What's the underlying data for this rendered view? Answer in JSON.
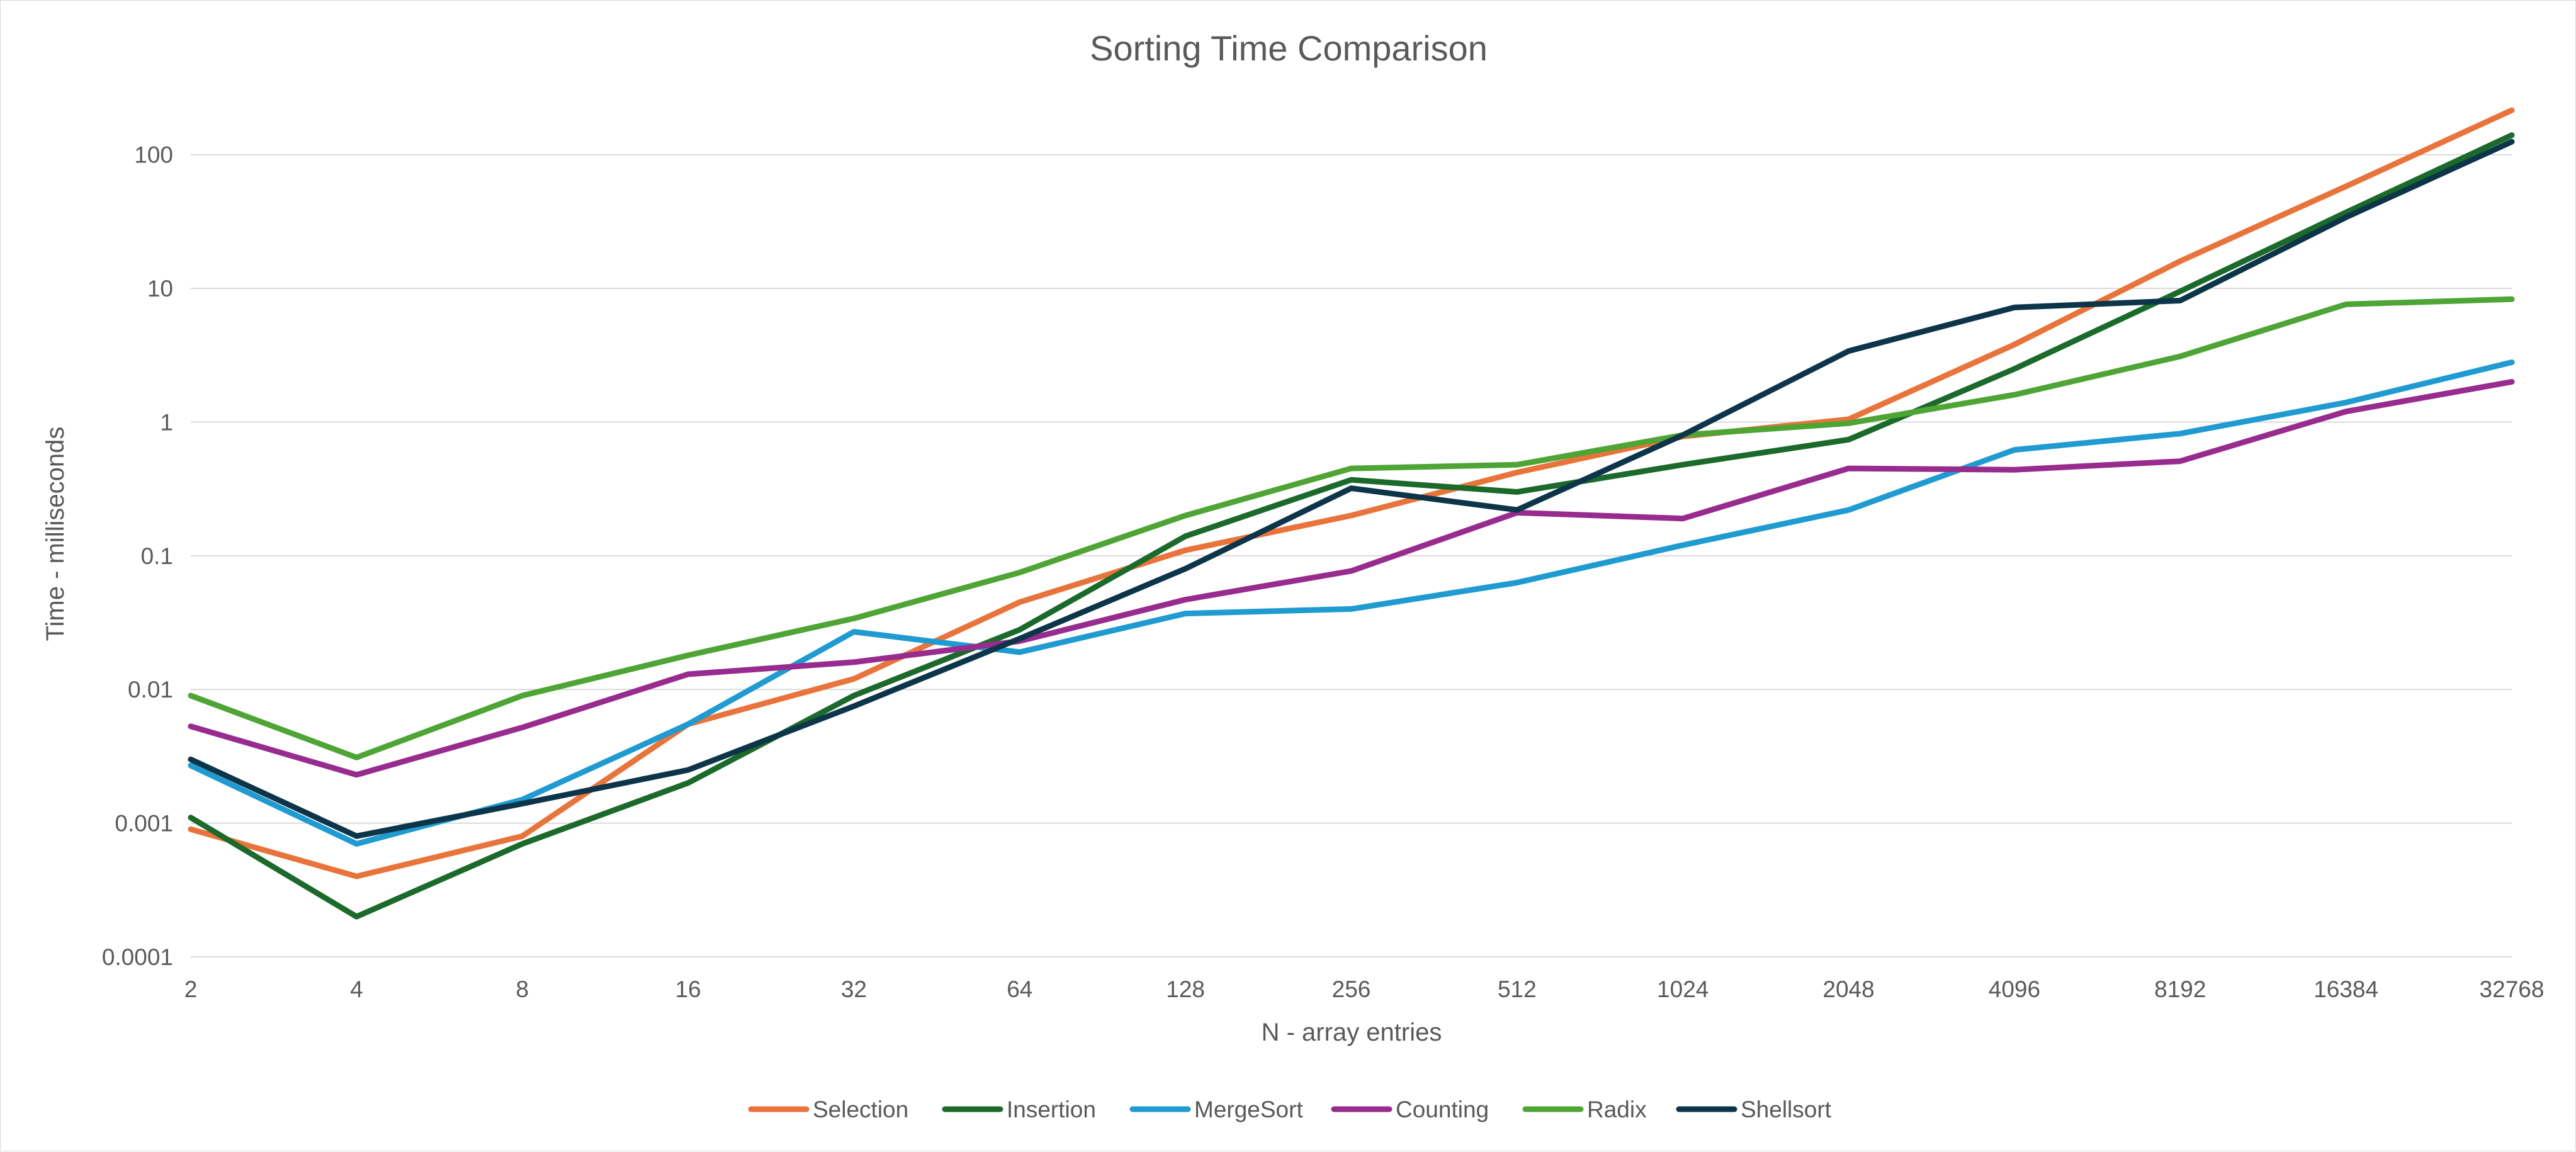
{
  "chart_data": {
    "type": "line",
    "title": "Sorting Time Comparison",
    "xlabel": "N - array entries",
    "ylabel": "Time - milliseconds",
    "x": [
      "2",
      "4",
      "8",
      "16",
      "32",
      "64",
      "128",
      "256",
      "512",
      "1024",
      "2048",
      "4096",
      "8192",
      "16384",
      "32768"
    ],
    "y_scale": "log",
    "ylim": [
      0.0001,
      220
    ],
    "y_ticks": [
      "0.0001",
      "0.001",
      "0.01",
      "0.1",
      "1",
      "10",
      "100"
    ],
    "y_tick_values": [
      0.0001,
      0.001,
      0.01,
      0.1,
      1,
      10,
      100
    ],
    "grid": true,
    "legend_position": "bottom",
    "series": [
      {
        "name": "Selection",
        "color": "#E8743B",
        "values": [
          0.0009,
          0.0004,
          0.0008,
          0.0055,
          0.012,
          0.045,
          0.11,
          0.2,
          0.42,
          0.78,
          1.05,
          3.8,
          16,
          58,
          215
        ]
      },
      {
        "name": "Insertion",
        "color": "#1B6A2B",
        "values": [
          0.0011,
          0.0002,
          0.0007,
          0.002,
          0.009,
          0.028,
          0.14,
          0.37,
          0.3,
          0.48,
          0.74,
          2.5,
          9.5,
          37,
          140
        ]
      },
      {
        "name": "MergeSort",
        "color": "#1F9BD1",
        "values": [
          0.0027,
          0.0007,
          0.0015,
          0.0055,
          0.027,
          0.019,
          0.037,
          0.04,
          0.063,
          0.12,
          0.22,
          0.62,
          0.82,
          1.4,
          2.8
        ]
      },
      {
        "name": "Counting",
        "color": "#982B8E",
        "values": [
          0.0053,
          0.0023,
          0.0052,
          0.013,
          0.016,
          0.023,
          0.047,
          0.077,
          0.21,
          0.19,
          0.45,
          0.44,
          0.51,
          1.2,
          2.0
        ]
      },
      {
        "name": "Radix",
        "color": "#4EA535",
        "values": [
          0.009,
          0.0031,
          0.009,
          0.018,
          0.034,
          0.075,
          0.2,
          0.45,
          0.48,
          0.8,
          0.98,
          1.6,
          3.1,
          7.6,
          8.3
        ]
      },
      {
        "name": "Shellsort",
        "color": "#0D3549",
        "values": [
          0.003,
          0.0008,
          0.0014,
          0.0025,
          0.0075,
          0.024,
          0.08,
          0.32,
          0.22,
          0.8,
          3.4,
          7.2,
          8.1,
          34,
          125
        ]
      }
    ]
  }
}
